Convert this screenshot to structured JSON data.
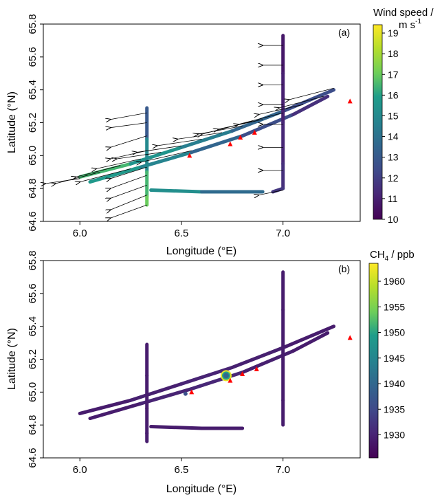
{
  "chart_data": [
    {
      "type": "scatter",
      "panel_label": "(a)",
      "xlabel": "Longitude (°E)",
      "ylabel": "Latitude (°N)",
      "xlim": [
        5.82,
        7.38
      ],
      "ylim": [
        64.6,
        65.8
      ],
      "xticks": [
        "6.0",
        "6.5",
        "7.0"
      ],
      "yticks": [
        "64.6",
        "64.8",
        "65.0",
        "65.2",
        "65.4",
        "65.6",
        "65.8"
      ],
      "colorbar": {
        "title_line1": "Wind speed /",
        "title_line2": "m s",
        "title_sup": "-1",
        "range": [
          10,
          19.4
        ],
        "ticks": [
          "10",
          "11",
          "12",
          "13",
          "14",
          "15",
          "16",
          "17",
          "18",
          "19"
        ],
        "colormap": "viridis"
      },
      "track_color_note": "flight track colored by wind speed",
      "track": [
        {
          "name": "leg1",
          "points": [
            [
              6.0,
              64.87
            ],
            [
              6.25,
              64.95
            ],
            [
              6.5,
              65.05
            ],
            [
              6.75,
              65.15
            ],
            [
              7.0,
              65.27
            ],
            [
              7.25,
              65.4
            ]
          ],
          "values": [
            17,
            16,
            15,
            14,
            13,
            12
          ]
        },
        {
          "name": "leg2",
          "points": [
            [
              6.05,
              64.84
            ],
            [
              6.3,
              64.93
            ],
            [
              6.55,
              65.02
            ],
            [
              6.8,
              65.12
            ],
            [
              7.05,
              65.25
            ],
            [
              7.22,
              65.36
            ]
          ],
          "values": [
            16,
            15.5,
            14,
            13,
            12,
            11
          ]
        },
        {
          "name": "vertical-east",
          "points": [
            [
              7.0,
              65.73
            ],
            [
              7.0,
              65.5
            ],
            [
              7.0,
              65.2
            ],
            [
              7.0,
              64.95
            ],
            [
              7.0,
              64.8
            ],
            [
              6.95,
              64.78
            ]
          ],
          "values": [
            10.5,
            11,
            11,
            11.5,
            11.5,
            12
          ]
        },
        {
          "name": "vertical-west",
          "points": [
            [
              6.33,
              65.29
            ],
            [
              6.33,
              65.1
            ],
            [
              6.33,
              64.9
            ],
            [
              6.33,
              64.75
            ],
            [
              6.33,
              64.7
            ]
          ],
          "values": [
            12,
            14,
            16,
            17,
            17
          ]
        },
        {
          "name": "south-leg",
          "points": [
            [
              6.35,
              64.79
            ],
            [
              6.6,
              64.78
            ],
            [
              6.9,
              64.78
            ]
          ],
          "values": [
            16,
            14.5,
            13
          ]
        }
      ],
      "wind_arrows": [
        {
          "lon": 7.0,
          "lat": 65.67,
          "dlon": -0.1,
          "dlat": 0.0
        },
        {
          "lon": 7.0,
          "lat": 65.55,
          "dlon": -0.1,
          "dlat": 0.0
        },
        {
          "lon": 7.0,
          "lat": 65.43,
          "dlon": -0.1,
          "dlat": 0.0
        },
        {
          "lon": 7.0,
          "lat": 65.31,
          "dlon": -0.1,
          "dlat": 0.0
        },
        {
          "lon": 7.0,
          "lat": 65.19,
          "dlon": -0.1,
          "dlat": 0.0
        },
        {
          "lon": 7.0,
          "lat": 65.05,
          "dlon": -0.1,
          "dlat": 0.0
        },
        {
          "lon": 7.0,
          "lat": 64.91,
          "dlon": -0.1,
          "dlat": 0.0
        },
        {
          "lon": 7.0,
          "lat": 64.79,
          "dlon": -0.12,
          "dlat": -0.03
        },
        {
          "lon": 6.33,
          "lat": 65.26,
          "dlon": -0.18,
          "dlat": -0.04
        },
        {
          "lon": 6.33,
          "lat": 65.2,
          "dlon": -0.18,
          "dlat": -0.03
        },
        {
          "lon": 6.33,
          "lat": 65.12,
          "dlon": -0.18,
          "dlat": -0.07
        },
        {
          "lon": 6.33,
          "lat": 65.03,
          "dlon": -0.18,
          "dlat": -0.05
        },
        {
          "lon": 6.33,
          "lat": 64.93,
          "dlon": -0.18,
          "dlat": -0.07
        },
        {
          "lon": 6.33,
          "lat": 64.88,
          "dlon": -0.18,
          "dlat": -0.08
        },
        {
          "lon": 6.33,
          "lat": 64.82,
          "dlon": -0.18,
          "dlat": -0.08
        },
        {
          "lon": 6.33,
          "lat": 64.76,
          "dlon": -0.18,
          "dlat": -0.09
        },
        {
          "lon": 6.33,
          "lat": 64.7,
          "dlon": -0.18,
          "dlat": -0.08
        },
        {
          "lon": 6.1,
          "lat": 64.9,
          "dlon": -0.22,
          "dlat": -0.07
        },
        {
          "lon": 6.2,
          "lat": 64.94,
          "dlon": -0.22,
          "dlat": -0.07
        },
        {
          "lon": 6.3,
          "lat": 64.98,
          "dlon": -0.22,
          "dlat": -0.06
        },
        {
          "lon": 6.4,
          "lat": 65.02,
          "dlon": -0.22,
          "dlat": -0.04
        },
        {
          "lon": 6.5,
          "lat": 65.06,
          "dlon": -0.22,
          "dlat": -0.04
        },
        {
          "lon": 6.6,
          "lat": 65.1,
          "dlon": -0.22,
          "dlat": -0.04
        },
        {
          "lon": 6.7,
          "lat": 65.14,
          "dlon": -0.22,
          "dlat": -0.04
        },
        {
          "lon": 6.8,
          "lat": 65.18,
          "dlon": -0.22,
          "dlat": -0.05
        },
        {
          "lon": 6.9,
          "lat": 65.22,
          "dlon": -0.22,
          "dlat": -0.06
        },
        {
          "lon": 7.0,
          "lat": 65.26,
          "dlon": -0.22,
          "dlat": -0.07
        },
        {
          "lon": 7.1,
          "lat": 65.31,
          "dlon": -0.22,
          "dlat": -0.06
        },
        {
          "lon": 7.2,
          "lat": 65.36,
          "dlon": -0.22,
          "dlat": -0.07
        },
        {
          "lon": 7.25,
          "lat": 65.41,
          "dlon": -0.22,
          "dlat": -0.07
        },
        {
          "lon": 6.85,
          "lat": 65.21,
          "dlon": -0.25,
          "dlat": -0.08
        },
        {
          "lon": 6.55,
          "lat": 65.03,
          "dlon": -0.25,
          "dlat": -0.07
        },
        {
          "lon": 6.25,
          "lat": 64.92,
          "dlon": -0.25,
          "dlat": -0.08
        },
        {
          "lon": 6.0,
          "lat": 64.86,
          "dlon": -0.17,
          "dlat": -0.03
        }
      ],
      "markers": [
        {
          "lon": 6.54,
          "lat": 65.0
        },
        {
          "lon": 6.74,
          "lat": 65.07
        },
        {
          "lon": 6.79,
          "lat": 65.11
        },
        {
          "lon": 6.86,
          "lat": 65.14
        },
        {
          "lon": 7.33,
          "lat": 65.33
        }
      ],
      "marker_color": "#ff0000"
    },
    {
      "type": "scatter",
      "panel_label": "(b)",
      "xlabel": "Longitude (°E)",
      "ylabel": "Latitude (°N)",
      "xlim": [
        5.82,
        7.38
      ],
      "ylim": [
        64.6,
        65.8
      ],
      "xticks": [
        "6.0",
        "6.5",
        "7.0"
      ],
      "yticks": [
        "64.6",
        "64.8",
        "65.0",
        "65.2",
        "65.4",
        "65.6",
        "65.8"
      ],
      "colorbar": {
        "title_main": "CH",
        "title_sub": "4",
        "title_unit": " / ppb",
        "range": [
          1925.5,
          1963.5
        ],
        "ticks": [
          "1930",
          "1935",
          "1940",
          "1945",
          "1950",
          "1955",
          "1960"
        ],
        "colormap": "viridis"
      },
      "track_color_note": "flight track colored by CH4",
      "track": [
        {
          "name": "leg1",
          "points": [
            [
              6.0,
              64.87
            ],
            [
              6.25,
              64.95
            ],
            [
              6.5,
              65.05
            ],
            [
              6.75,
              65.15
            ],
            [
              7.0,
              65.27
            ],
            [
              7.25,
              65.4
            ]
          ],
          "values": [
            1929,
            1929,
            1930,
            1930,
            1929,
            1929
          ]
        },
        {
          "name": "leg2",
          "points": [
            [
              6.05,
              64.84
            ],
            [
              6.3,
              64.93
            ],
            [
              6.55,
              65.02
            ],
            [
              6.8,
              65.12
            ],
            [
              7.05,
              65.25
            ],
            [
              7.22,
              65.36
            ]
          ],
          "values": [
            1929,
            1929,
            1931,
            1930,
            1929,
            1929
          ]
        },
        {
          "name": "vertical-east",
          "points": [
            [
              7.0,
              65.73
            ],
            [
              7.0,
              65.5
            ],
            [
              7.0,
              65.2
            ],
            [
              7.0,
              64.95
            ],
            [
              7.0,
              64.8
            ]
          ],
          "values": [
            1929,
            1929,
            1929,
            1929,
            1929
          ]
        },
        {
          "name": "vertical-west",
          "points": [
            [
              6.33,
              65.29
            ],
            [
              6.33,
              65.1
            ],
            [
              6.33,
              64.9
            ],
            [
              6.33,
              64.75
            ],
            [
              6.33,
              64.7
            ]
          ],
          "values": [
            1929,
            1929,
            1929,
            1929,
            1929
          ]
        },
        {
          "name": "south-leg",
          "points": [
            [
              6.35,
              64.79
            ],
            [
              6.6,
              64.78
            ],
            [
              6.8,
              64.78
            ]
          ],
          "values": [
            1929,
            1929,
            1929
          ]
        }
      ],
      "hotspots": [
        {
          "lon": 6.72,
          "lat": 65.1,
          "value": 1962
        },
        {
          "lon": 6.72,
          "lat": 65.1,
          "value": 1950
        },
        {
          "lon": 6.72,
          "lat": 65.1,
          "value": 1940
        },
        {
          "lon": 6.52,
          "lat": 64.99,
          "value": 1936
        }
      ],
      "markers": [
        {
          "lon": 6.55,
          "lat": 65.0
        },
        {
          "lon": 6.74,
          "lat": 65.07
        },
        {
          "lon": 6.8,
          "lat": 65.11
        },
        {
          "lon": 6.87,
          "lat": 65.14
        },
        {
          "lon": 7.33,
          "lat": 65.33
        }
      ],
      "marker_color": "#ff0000"
    }
  ]
}
